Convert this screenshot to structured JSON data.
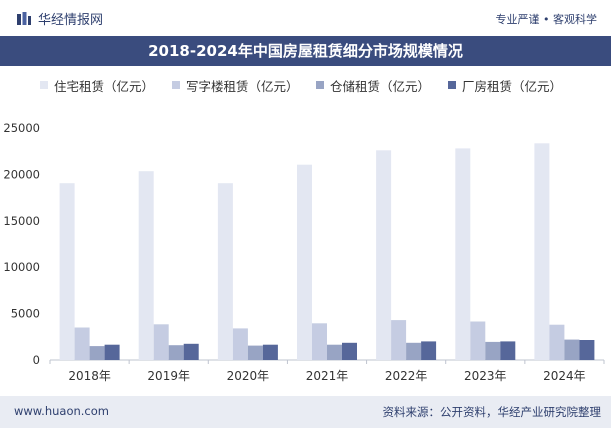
{
  "header": {
    "brand": "华经情报网",
    "slogan": "专业严谨 • 客观科学"
  },
  "footer": {
    "url": "www.huaon.com",
    "source": "资料来源：公开资料，华经产业研究院整理"
  },
  "chart_data": {
    "type": "bar",
    "title": "2018-2024年中国房屋租赁细分市场规模情况",
    "xlabel": "",
    "ylabel": "",
    "ylim": [
      0,
      25000
    ],
    "yticks": [
      0,
      5000,
      10000,
      15000,
      20000,
      25000
    ],
    "grid": false,
    "legend_position": "top",
    "categories": [
      "2018年",
      "2019年",
      "2020年",
      "2021年",
      "2022年",
      "2023年",
      "2024年"
    ],
    "series": [
      {
        "name": "住宅租赁（亿元）",
        "color": "#e3e7f2",
        "values": [
          19050,
          20350,
          19050,
          21050,
          22600,
          22800,
          23350
        ]
      },
      {
        "name": "写字楼租赁（亿元）",
        "color": "#c5cce2",
        "values": [
          3500,
          3850,
          3400,
          3950,
          4300,
          4150,
          3800
        ]
      },
      {
        "name": "仓储租赁（亿元）",
        "color": "#98a4c4",
        "values": [
          1500,
          1600,
          1550,
          1650,
          1850,
          1950,
          2200
        ]
      },
      {
        "name": "厂房租赁（亿元）",
        "color": "#56679a",
        "values": [
          1650,
          1750,
          1650,
          1850,
          2000,
          2000,
          2150
        ]
      }
    ]
  }
}
